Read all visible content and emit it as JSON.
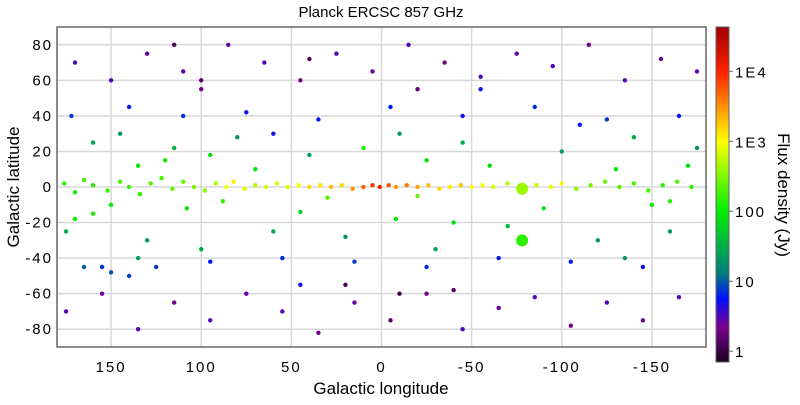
{
  "chart_data": {
    "type": "scatter",
    "title": "Planck ERCSC 857 GHz",
    "xlabel": "Galactic longitude",
    "ylabel": "Galactic latitude",
    "xlim": [
      180,
      -180
    ],
    "ylim": [
      -90,
      90
    ],
    "xticks": [
      150,
      100,
      50,
      0,
      -50,
      -100,
      -150
    ],
    "xtick_labels": [
      "150",
      "100",
      "50",
      "0",
      "-50",
      "-100",
      "-150"
    ],
    "yticks": [
      80,
      60,
      40,
      20,
      0,
      -20,
      -40,
      -60,
      -80
    ],
    "ytick_labels": [
      "80",
      "60",
      "40",
      "20",
      "0",
      "-20",
      "-40",
      "-60",
      "-80"
    ],
    "grid": true,
    "colorbar": {
      "label": "Flux density (Jy)",
      "scale": "log",
      "range": [
        0.7,
        43000
      ],
      "ticks": [
        1,
        10,
        100,
        1000,
        10000
      ],
      "tick_labels": [
        "1",
        "10",
        "100",
        "1E3",
        "1E4"
      ],
      "colormap": [
        "#1a0020",
        "#7a0090",
        "#0010ff",
        "#007a80",
        "#00ee00",
        "#ffff00",
        "#ff2000",
        "#a00000"
      ]
    },
    "points_columns": [
      "longitude",
      "latitude",
      "flux_density_jy"
    ],
    "points": [
      [
        176,
        2,
        150
      ],
      [
        170,
        -3,
        120
      ],
      [
        165,
        4,
        180
      ],
      [
        160,
        1,
        140
      ],
      [
        152,
        -2,
        160
      ],
      [
        145,
        3,
        200
      ],
      [
        140,
        0,
        170
      ],
      [
        134,
        -4,
        150
      ],
      [
        128,
        2,
        220
      ],
      [
        122,
        5,
        190
      ],
      [
        116,
        -1,
        260
      ],
      [
        110,
        3,
        240
      ],
      [
        104,
        0,
        300
      ],
      [
        98,
        -2,
        350
      ],
      [
        92,
        2,
        500
      ],
      [
        86,
        0,
        900
      ],
      [
        82,
        3,
        1200
      ],
      [
        76,
        -1,
        700
      ],
      [
        70,
        1,
        500
      ],
      [
        64,
        0,
        600
      ],
      [
        58,
        2,
        700
      ],
      [
        52,
        0,
        800
      ],
      [
        46,
        1,
        1000
      ],
      [
        40,
        0,
        1500
      ],
      [
        34,
        1,
        1300
      ],
      [
        28,
        0,
        2000
      ],
      [
        22,
        1,
        1500
      ],
      [
        16,
        -1,
        3000
      ],
      [
        10,
        0,
        5000
      ],
      [
        5,
        1,
        8000
      ],
      [
        1,
        0,
        12000
      ],
      [
        -4,
        1,
        6000
      ],
      [
        -8,
        0,
        3000
      ],
      [
        -14,
        1,
        4000
      ],
      [
        -20,
        0,
        2500
      ],
      [
        -26,
        1,
        2000
      ],
      [
        -32,
        -1,
        1500
      ],
      [
        -38,
        0,
        1200
      ],
      [
        -44,
        1,
        1800
      ],
      [
        -50,
        0,
        1100
      ],
      [
        -56,
        1,
        900
      ],
      [
        -62,
        0,
        700
      ],
      [
        -70,
        2,
        500
      ],
      [
        -78,
        -1,
        400
      ],
      [
        -86,
        1,
        600
      ],
      [
        -94,
        0,
        800
      ],
      [
        -100,
        2,
        900
      ],
      [
        -108,
        -1,
        350
      ],
      [
        -116,
        1,
        300
      ],
      [
        -124,
        3,
        250
      ],
      [
        -132,
        0,
        220
      ],
      [
        -140,
        2,
        200
      ],
      [
        -148,
        -2,
        180
      ],
      [
        -156,
        1,
        160
      ],
      [
        -164,
        3,
        200
      ],
      [
        -172,
        0,
        150
      ],
      [
        160,
        -15,
        120
      ],
      [
        150,
        -10,
        100
      ],
      [
        135,
        12,
        90
      ],
      [
        120,
        15,
        110
      ],
      [
        108,
        -12,
        80
      ],
      [
        95,
        18,
        70
      ],
      [
        70,
        10,
        90
      ],
      [
        45,
        -14,
        60
      ],
      [
        10,
        22,
        120
      ],
      [
        -8,
        -18,
        100
      ],
      [
        -25,
        15,
        90
      ],
      [
        -40,
        -20,
        80
      ],
      [
        -60,
        12,
        70
      ],
      [
        -78,
        -30,
        150
      ],
      [
        -90,
        -12,
        90
      ],
      [
        -130,
        10,
        80
      ],
      [
        -150,
        -10,
        110
      ],
      [
        -160,
        -8,
        140
      ],
      [
        -170,
        12,
        90
      ],
      [
        170,
        -18,
        110
      ],
      [
        88,
        -8,
        150
      ],
      [
        30,
        -6,
        200
      ],
      [
        -20,
        -5,
        250
      ],
      [
        175,
        -25,
        30
      ],
      [
        160,
        25,
        25
      ],
      [
        145,
        30,
        20
      ],
      [
        130,
        -30,
        22
      ],
      [
        115,
        22,
        35
      ],
      [
        100,
        -35,
        28
      ],
      [
        80,
        28,
        20
      ],
      [
        60,
        -25,
        30
      ],
      [
        40,
        18,
        25
      ],
      [
        20,
        -28,
        20
      ],
      [
        -10,
        30,
        22
      ],
      [
        -30,
        -35,
        25
      ],
      [
        -45,
        25,
        30
      ],
      [
        -70,
        -22,
        40
      ],
      [
        -100,
        20,
        25
      ],
      [
        -120,
        -30,
        20
      ],
      [
        -140,
        28,
        30
      ],
      [
        -160,
        -25,
        22
      ],
      [
        -175,
        22,
        18
      ],
      [
        135,
        -40,
        25
      ],
      [
        -135,
        -40,
        20
      ],
      [
        172,
        40,
        8
      ],
      [
        155,
        -45,
        7
      ],
      [
        140,
        45,
        6
      ],
      [
        125,
        -45,
        8
      ],
      [
        110,
        40,
        7
      ],
      [
        95,
        -42,
        6
      ],
      [
        75,
        42,
        5
      ],
      [
        55,
        -40,
        7
      ],
      [
        35,
        38,
        6
      ],
      [
        15,
        -42,
        8
      ],
      [
        -5,
        45,
        6
      ],
      [
        -25,
        -45,
        7
      ],
      [
        -45,
        40,
        5
      ],
      [
        -65,
        -40,
        6
      ],
      [
        -85,
        45,
        7
      ],
      [
        -105,
        -42,
        6
      ],
      [
        -125,
        38,
        8
      ],
      [
        -145,
        -45,
        5
      ],
      [
        -165,
        40,
        6
      ],
      [
        150,
        -48,
        9
      ],
      [
        140,
        -50,
        8
      ],
      [
        165,
        -45,
        10
      ],
      [
        -110,
        35,
        6
      ],
      [
        60,
        30,
        5
      ],
      [
        -55,
        55,
        6
      ],
      [
        45,
        -55,
        5
      ],
      [
        170,
        70,
        3
      ],
      [
        150,
        60,
        3
      ],
      [
        130,
        75,
        2.5
      ],
      [
        110,
        65,
        3
      ],
      [
        100,
        55,
        2
      ],
      [
        85,
        80,
        2.5
      ],
      [
        65,
        70,
        3
      ],
      [
        45,
        60,
        2
      ],
      [
        25,
        75,
        3
      ],
      [
        5,
        65,
        2.5
      ],
      [
        -15,
        80,
        3
      ],
      [
        -35,
        70,
        2
      ],
      [
        -55,
        62,
        3
      ],
      [
        -75,
        75,
        2.5
      ],
      [
        -95,
        68,
        3
      ],
      [
        -115,
        80,
        2
      ],
      [
        -135,
        60,
        3
      ],
      [
        -155,
        72,
        2.5
      ],
      [
        -175,
        65,
        3
      ],
      [
        175,
        -70,
        3
      ],
      [
        155,
        -60,
        2.5
      ],
      [
        135,
        -80,
        3
      ],
      [
        115,
        -65,
        2
      ],
      [
        95,
        -75,
        3
      ],
      [
        75,
        -60,
        2.5
      ],
      [
        55,
        -70,
        3
      ],
      [
        35,
        -82,
        2
      ],
      [
        15,
        -65,
        2.5
      ],
      [
        -5,
        -75,
        1.5
      ],
      [
        -25,
        -60,
        2
      ],
      [
        -45,
        -80,
        3
      ],
      [
        -65,
        -68,
        2.5
      ],
      [
        -85,
        -62,
        3
      ],
      [
        -105,
        -78,
        2
      ],
      [
        -125,
        -65,
        3
      ],
      [
        -145,
        -75,
        2.5
      ],
      [
        -165,
        -62,
        3
      ],
      [
        20,
        -55,
        1.2
      ],
      [
        -10,
        -60,
        1.1
      ],
      [
        -40,
        -58,
        1.3
      ],
      [
        100,
        60,
        1.5
      ],
      [
        115,
        80,
        1.4
      ],
      [
        -20,
        55,
        1.6
      ],
      [
        40,
        72,
        1.3
      ]
    ]
  }
}
